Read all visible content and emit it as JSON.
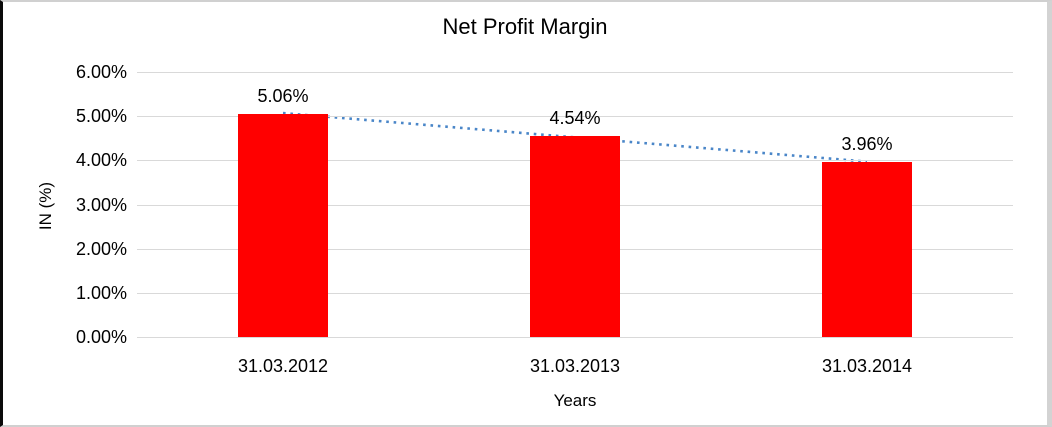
{
  "chart_data": {
    "type": "bar",
    "title": "Net Profit Margin",
    "categories": [
      "31.03.2012",
      "31.03.2013",
      "31.03.2014"
    ],
    "values": [
      5.06,
      4.54,
      3.96
    ],
    "data_labels": [
      "5.06%",
      "4.54%",
      "3.96%"
    ],
    "xlabel": "Years",
    "ylabel": "IN (%)",
    "ylim": [
      0,
      6
    ],
    "ytick_labels": [
      "6.00%",
      "5.00%",
      "4.00%",
      "3.00%",
      "2.00%",
      "1.00%",
      "0.00%"
    ],
    "grid": true,
    "legend": false,
    "bar_color": "#ff0000",
    "gridline_color": "#d9d9d9",
    "text_color": "#000000",
    "trendline": {
      "type": "linear",
      "style": "dotted",
      "color": "#4a86c8",
      "start_value": 5.07,
      "end_value": 3.97
    }
  }
}
